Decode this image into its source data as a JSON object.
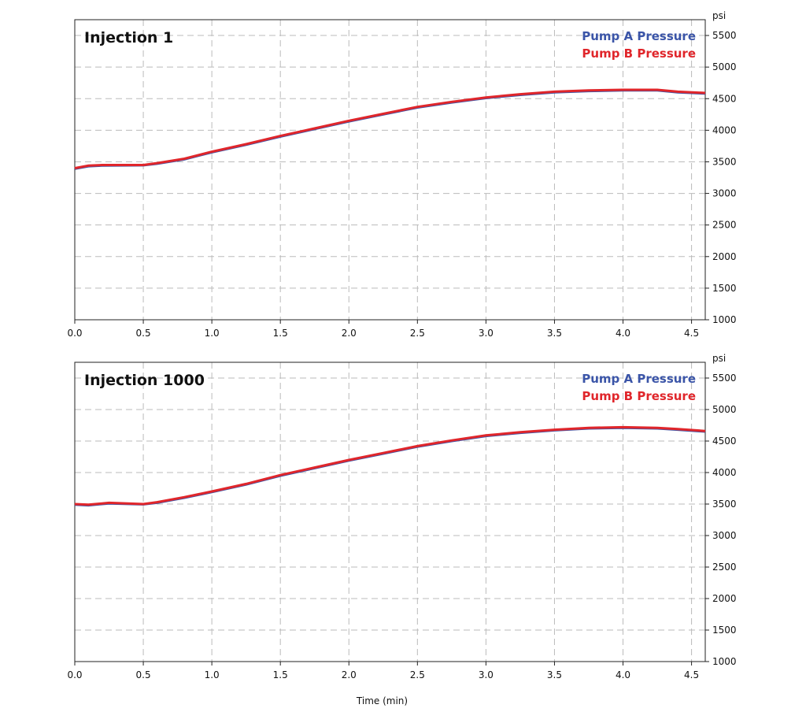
{
  "chart_data": [
    {
      "type": "line",
      "title": "Injection 1",
      "y_label": "psi",
      "x": [
        0,
        0.1,
        0.2,
        0.5,
        0.6,
        0.8,
        1.0,
        1.25,
        1.5,
        1.75,
        2.0,
        2.25,
        2.5,
        2.75,
        3.0,
        3.25,
        3.5,
        3.75,
        4.0,
        4.25,
        4.4,
        4.6
      ],
      "series": [
        {
          "name": "Pump A Pressure",
          "color": "#3b55a8",
          "values": [
            3390,
            3430,
            3440,
            3445,
            3470,
            3540,
            3650,
            3770,
            3900,
            4020,
            4140,
            4250,
            4360,
            4440,
            4510,
            4560,
            4600,
            4620,
            4630,
            4630,
            4600,
            4580
          ]
        },
        {
          "name": "Pump B Pressure",
          "color": "#e0262b",
          "values": [
            3400,
            3440,
            3450,
            3450,
            3480,
            3550,
            3660,
            3780,
            3910,
            4030,
            4150,
            4260,
            4370,
            4450,
            4520,
            4570,
            4610,
            4630,
            4640,
            4640,
            4610,
            4590
          ]
        }
      ],
      "xlim": [
        0,
        4.6
      ],
      "xticks": [
        {
          "value": 0,
          "label": "0.0"
        },
        0.5,
        {
          "value": 1,
          "label": "1.0"
        },
        1.5,
        {
          "value": 2,
          "label": "2.0"
        },
        2.5,
        {
          "value": 3,
          "label": "3.0"
        },
        3.5,
        {
          "value": 4,
          "label": "4.0"
        },
        4.5
      ],
      "ylim": [
        1000,
        5750
      ],
      "yticks": [
        1000,
        1500,
        2000,
        2500,
        3000,
        3500,
        4000,
        4500,
        5000,
        5500
      ],
      "grid": true,
      "legend": "upper right"
    },
    {
      "type": "line",
      "title": "Injection 1000",
      "y_label": "psi",
      "x_label": "Time (min)",
      "x": [
        0,
        0.1,
        0.25,
        0.5,
        0.6,
        0.8,
        1.0,
        1.25,
        1.5,
        1.75,
        2.0,
        2.25,
        2.5,
        2.75,
        3.0,
        3.25,
        3.5,
        3.75,
        4.0,
        4.25,
        4.4,
        4.6
      ],
      "series": [
        {
          "name": "Pump A Pressure",
          "color": "#3b55a8",
          "values": [
            3490,
            3480,
            3510,
            3495,
            3520,
            3600,
            3690,
            3810,
            3950,
            4070,
            4190,
            4300,
            4410,
            4500,
            4580,
            4630,
            4670,
            4700,
            4710,
            4700,
            4680,
            4650
          ]
        },
        {
          "name": "Pump B Pressure",
          "color": "#e0262b",
          "values": [
            3500,
            3490,
            3520,
            3500,
            3530,
            3610,
            3700,
            3820,
            3960,
            4080,
            4200,
            4310,
            4420,
            4510,
            4590,
            4640,
            4680,
            4710,
            4720,
            4710,
            4690,
            4660
          ]
        }
      ],
      "xlim": [
        0,
        4.6
      ],
      "xticks": [
        {
          "value": 0,
          "label": "0.0"
        },
        0.5,
        {
          "value": 1,
          "label": "1.0"
        },
        1.5,
        {
          "value": 2,
          "label": "2.0"
        },
        2.5,
        {
          "value": 3,
          "label": "3.0"
        },
        3.5,
        {
          "value": 4,
          "label": "4.0"
        },
        4.5
      ],
      "ylim": [
        1000,
        5750
      ],
      "yticks": [
        1000,
        1500,
        2000,
        2500,
        3000,
        3500,
        4000,
        4500,
        5000,
        5500
      ],
      "grid": true,
      "legend": "upper right"
    }
  ]
}
